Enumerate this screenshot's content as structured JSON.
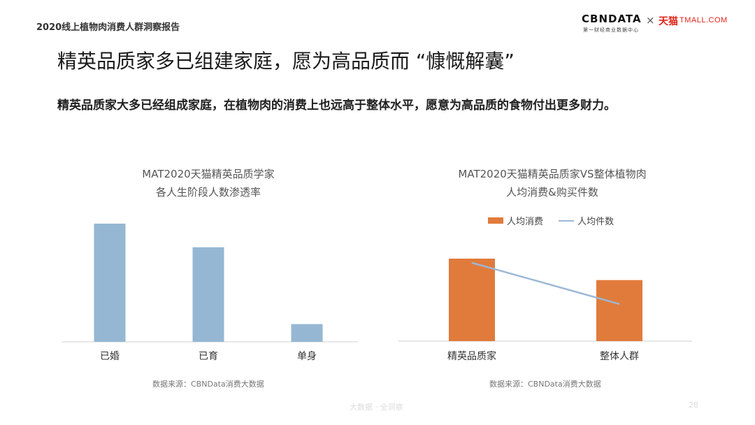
{
  "header": {
    "report_title": "2020线上植物肉消费人群洞察报告",
    "logo_cbn": "CBNDATA",
    "logo_cbn_sub": "第一财经商业数据中心",
    "logo_times": "×",
    "logo_tmall_cn": "天猫",
    "logo_tmall_en": "TMALL.COM"
  },
  "heading": "精英品质家多已组建家庭，愿为高品质而 “慷慨解囊”",
  "subheading": "精英品质家大多已经组成家庭，在植物肉的消费上也远高于整体水平，愿意为高品质的食物付出更多财力。",
  "footer": {
    "watermark": "大数据 · 全洞察",
    "page": "28"
  },
  "colors": {
    "bar_blue": "#95b7d3",
    "bar_orange": "#e07b3c",
    "line_blue": "#9db8d6"
  },
  "chart_data": [
    {
      "type": "bar",
      "title_line1": "MAT2020天猫精英品质学家",
      "title_line2": "各人生阶段人数渗透率",
      "categories": [
        "已婚",
        "已育",
        "单身"
      ],
      "values": [
        100,
        80,
        15
      ],
      "ylim": [
        0,
        110
      ],
      "grid": false,
      "source": "数据来源：CBNData消费大数据"
    },
    {
      "type": "bar",
      "title_line1": "MAT2020天猫精英品质家VS整体植物肉",
      "title_line2": "人均消费&购买件数",
      "categories": [
        "精英品质家",
        "整体人群"
      ],
      "series": [
        {
          "name": "人均消费",
          "type": "bar",
          "values": [
            100,
            74
          ]
        },
        {
          "name": "人均件数",
          "type": "line",
          "values": [
            95,
            45
          ]
        }
      ],
      "ylim": [
        0,
        130
      ],
      "legend": "top",
      "grid": false,
      "source": "数据来源：CBNData消费大数据"
    }
  ]
}
